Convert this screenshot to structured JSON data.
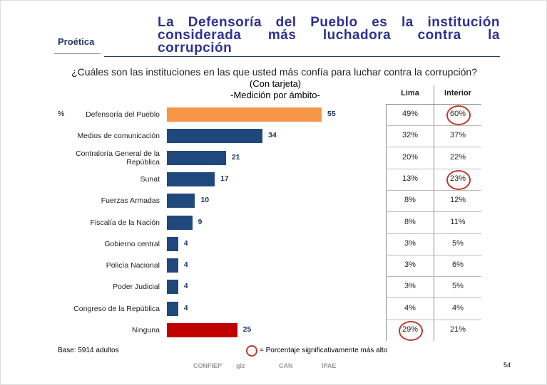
{
  "header": {
    "logo": "Proética",
    "title_lines": [
      "La Defensoría del Pueblo es la institución",
      "considerada más luchadora contra la",
      "corrupción"
    ]
  },
  "question": "¿Cuáles son las instituciones en las que usted más confía para luchar contra la corrupción?",
  "subtitle": "(Con tarjeta)",
  "subtitle2": "-Medición por ámbito-",
  "chart_data": {
    "type": "bar",
    "unit_label": "%",
    "categories": [
      "Defensoría del Pueblo",
      "Medios de comunicación",
      "Contraloría General de la República",
      "Sunat",
      "Fuerzas Armadas",
      "Fiscalía de la Nación",
      "Gobierno central",
      "Policía Nacional",
      "Poder Judicial",
      "Congreso de la República",
      "Ninguna"
    ],
    "values": [
      55,
      34,
      21,
      17,
      10,
      9,
      4,
      4,
      4,
      4,
      25
    ],
    "colors": [
      "#f79646",
      "#1f497d",
      "#1f497d",
      "#1f497d",
      "#1f497d",
      "#1f497d",
      "#1f497d",
      "#1f497d",
      "#1f497d",
      "#1f497d",
      "#c00000"
    ]
  },
  "table": {
    "columns": [
      "Lima",
      "Interior"
    ],
    "rows": [
      [
        "49%",
        "60%"
      ],
      [
        "32%",
        "37%"
      ],
      [
        "20%",
        "22%"
      ],
      [
        "13%",
        "23%"
      ],
      [
        "8%",
        "12%"
      ],
      [
        "8%",
        "11%"
      ],
      [
        "3%",
        "5%"
      ],
      [
        "3%",
        "6%"
      ],
      [
        "3%",
        "5%"
      ],
      [
        "4%",
        "4%"
      ],
      [
        "29%",
        "21%"
      ]
    ],
    "highlight": [
      [
        0,
        1
      ],
      [
        3,
        1
      ],
      [
        10,
        0
      ]
    ],
    "highlight_color": "#c0392b"
  },
  "footer": {
    "base": "Base: 5914 adultos",
    "legend": "= Porcentaje significativamente más alto",
    "logos": [
      "CONFIEP",
      "giz",
      "CAN",
      "IPAE"
    ],
    "page": "54"
  }
}
